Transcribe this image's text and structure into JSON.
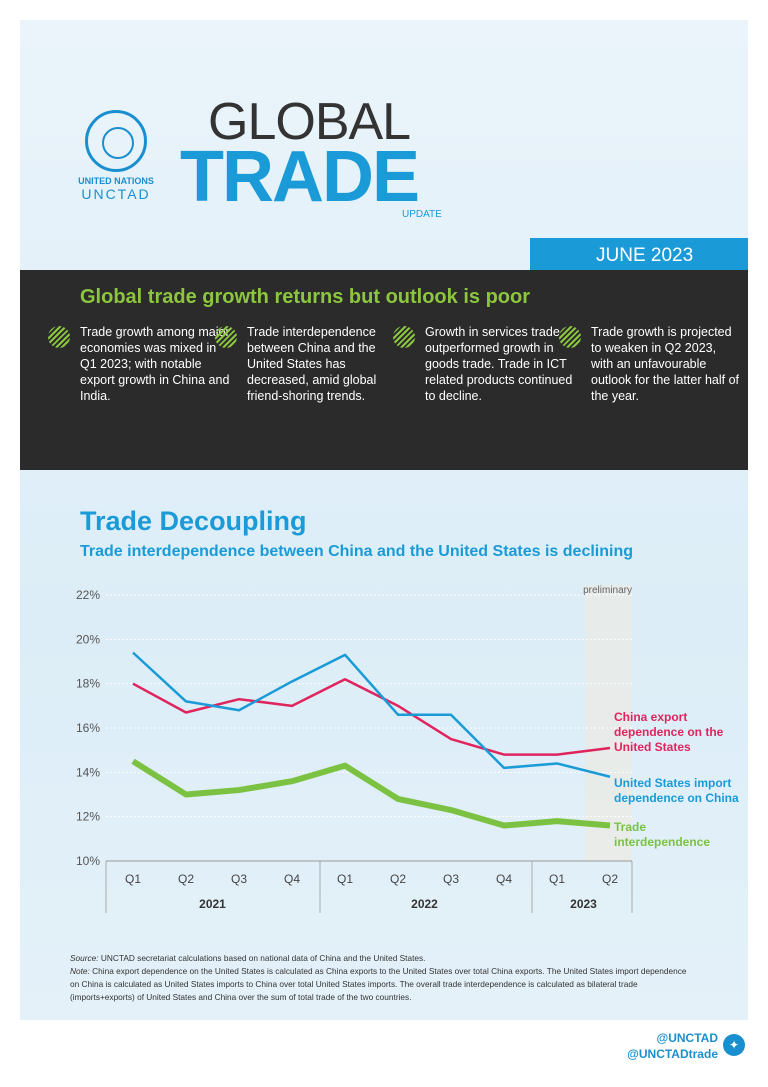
{
  "header": {
    "org_line1": "UNITED NATIONS",
    "org_line2": "UNCTAD",
    "title_line1": "GLOBAL",
    "title_line2": "TRADE",
    "title_line3": "UPDATE",
    "date": "JUNE 2023"
  },
  "highlights": {
    "title": "Global trade growth returns but outlook is poor",
    "bullets": [
      "Trade growth among major economies was mixed in Q1 2023; with notable export growth in China and India.",
      "Trade interdependence between China and the United States has decreased, amid global friend-shoring trends.",
      "Growth in services trade outperformed growth in goods trade. Trade in ICT related products continued to decline.",
      "Trade growth is projected to weaken in Q2 2023, with an unfavourable outlook for the latter half of the year."
    ]
  },
  "section": {
    "title": "Trade Decoupling",
    "subtitle": "Trade interdependence between China and the United States is declining"
  },
  "chart_data": {
    "type": "line",
    "title": "",
    "xlabel": "",
    "ylabel": "",
    "ylim": [
      10,
      22
    ],
    "grid": true,
    "yticks": [
      "10%",
      "12%",
      "14%",
      "16%",
      "18%",
      "20%",
      "22%"
    ],
    "categories": [
      "Q1",
      "Q2",
      "Q3",
      "Q4",
      "Q1",
      "Q2",
      "Q3",
      "Q4",
      "Q1",
      "Q2"
    ],
    "years": [
      {
        "label": "2021",
        "span": 4
      },
      {
        "label": "2022",
        "span": 4
      },
      {
        "label": "2023",
        "span": 2
      }
    ],
    "annotation": "preliminary",
    "series": [
      {
        "name": "China export dependence on the United States",
        "color": "#e0245e",
        "values": [
          18.0,
          16.7,
          17.3,
          17.0,
          18.2,
          17.0,
          15.5,
          14.8,
          14.8,
          15.1
        ]
      },
      {
        "name": "United States import dependence on China",
        "color": "#1a9bd7",
        "values": [
          19.4,
          17.2,
          16.8,
          18.1,
          19.3,
          16.6,
          16.6,
          14.2,
          14.4,
          13.8
        ]
      },
      {
        "name": "Trade interdependence",
        "color": "#7cc242",
        "values": [
          14.5,
          13.0,
          13.2,
          13.6,
          14.3,
          12.8,
          12.3,
          11.6,
          11.8,
          11.6
        ]
      }
    ]
  },
  "notes": {
    "source_label": "Source:",
    "source": "UNCTAD secretariat calculations based on national data of China and the United States.",
    "note_label": "Note:",
    "note": "China export dependence on the United States is calculated as China exports to the United States over total China exports. The United States import dependence on China is calculated as United States imports to China over total United States imports. The overall trade interdependence is calculated as bilateral trade (imports+exports) of United States and China over the sum of total trade of the two countries."
  },
  "footer": {
    "handle1": "@UNCTAD",
    "handle2": "@UNCTADtrade",
    "icon": "twitter-icon"
  }
}
